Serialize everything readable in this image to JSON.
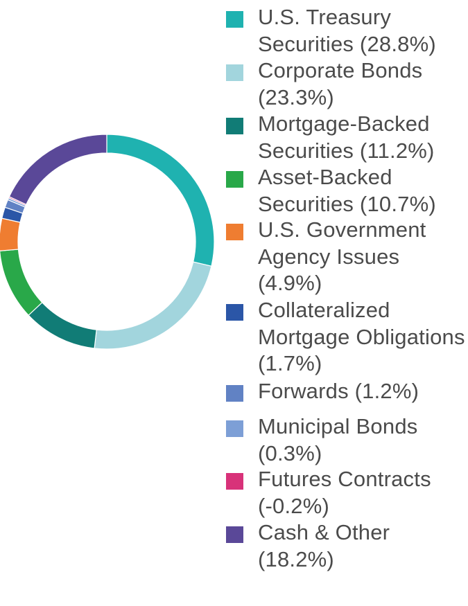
{
  "chart_data": {
    "type": "pie",
    "style": "donut",
    "legend_placement": "right",
    "slices": [
      {
        "label": "U.S. Treasury Securities (28.8%)",
        "value": 28.8,
        "color": "#1fb2b0"
      },
      {
        "label": "Corporate Bonds (23.3%)",
        "value": 23.3,
        "color": "#a2d5dd"
      },
      {
        "label": "Mortgage-Backed Securities (11.2%)",
        "value": 11.2,
        "color": "#117c76"
      },
      {
        "label": "Asset-Backed Securities (10.7%)",
        "value": 10.7,
        "color": "#29a849"
      },
      {
        "label": "U.S. Government Agency Issues (4.9%)",
        "value": 4.9,
        "color": "#ef7d31"
      },
      {
        "label": "Collateralized Mortgage Obligations (1.7%)",
        "value": 1.7,
        "color": "#2b56a7"
      },
      {
        "label": "Forwards (1.2%)",
        "value": 1.2,
        "color": "#6182c4"
      },
      {
        "label": "Municipal Bonds (0.3%)",
        "value": 0.3,
        "color": "#7d9fd6"
      },
      {
        "label": "Futures Contracts (-0.2%)",
        "value": -0.2,
        "color": "#d83279"
      },
      {
        "label": "Cash & Other (18.2%)",
        "value": 18.2,
        "color": "#5a4898"
      }
    ]
  }
}
